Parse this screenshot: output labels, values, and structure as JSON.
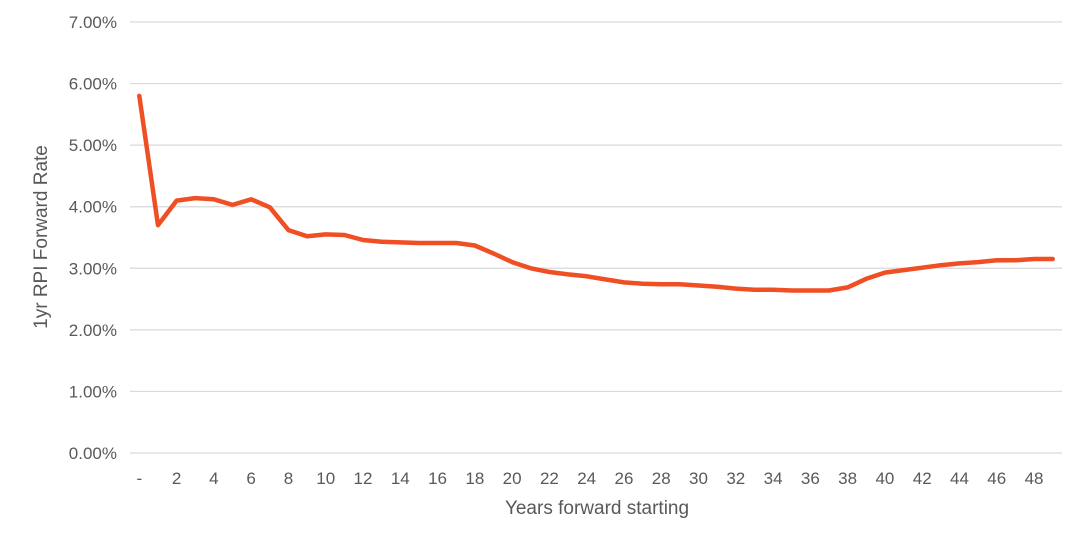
{
  "chart_data": {
    "type": "line",
    "title": "",
    "xlabel": "Years forward starting",
    "ylabel": "1yr RPI Forward Rate",
    "x": [
      0,
      1,
      2,
      3,
      4,
      5,
      6,
      7,
      8,
      9,
      10,
      11,
      12,
      13,
      14,
      15,
      16,
      17,
      18,
      19,
      20,
      21,
      22,
      23,
      24,
      25,
      26,
      27,
      28,
      29,
      30,
      31,
      32,
      33,
      34,
      35,
      36,
      37,
      38,
      39,
      40,
      41,
      42,
      43,
      44,
      45,
      46,
      47,
      48,
      49
    ],
    "x_tick_labels": [
      {
        "x": 0,
        "label": "-"
      },
      {
        "x": 2,
        "label": "2"
      },
      {
        "x": 4,
        "label": "4"
      },
      {
        "x": 6,
        "label": "6"
      },
      {
        "x": 8,
        "label": "8"
      },
      {
        "x": 10,
        "label": "10"
      },
      {
        "x": 12,
        "label": "12"
      },
      {
        "x": 14,
        "label": "14"
      },
      {
        "x": 16,
        "label": "16"
      },
      {
        "x": 18,
        "label": "18"
      },
      {
        "x": 20,
        "label": "20"
      },
      {
        "x": 22,
        "label": "22"
      },
      {
        "x": 24,
        "label": "24"
      },
      {
        "x": 26,
        "label": "26"
      },
      {
        "x": 28,
        "label": "28"
      },
      {
        "x": 30,
        "label": "30"
      },
      {
        "x": 32,
        "label": "32"
      },
      {
        "x": 34,
        "label": "34"
      },
      {
        "x": 36,
        "label": "36"
      },
      {
        "x": 38,
        "label": "38"
      },
      {
        "x": 40,
        "label": "40"
      },
      {
        "x": 42,
        "label": "42"
      },
      {
        "x": 44,
        "label": "44"
      },
      {
        "x": 46,
        "label": "46"
      },
      {
        "x": 48,
        "label": "48"
      }
    ],
    "y_ticks": [
      {
        "value": 0.0,
        "label": "0.00%"
      },
      {
        "value": 1.0,
        "label": "1.00%"
      },
      {
        "value": 2.0,
        "label": "2.00%"
      },
      {
        "value": 3.0,
        "label": "3.00%"
      },
      {
        "value": 4.0,
        "label": "4.00%"
      },
      {
        "value": 5.0,
        "label": "5.00%"
      },
      {
        "value": 6.0,
        "label": "6.00%"
      },
      {
        "value": 7.0,
        "label": "7.00%"
      }
    ],
    "ylim": [
      0,
      7
    ],
    "xlim": [
      0,
      49
    ],
    "grid": true,
    "legend": "none",
    "series": [
      {
        "color": "#f04e23",
        "values": [
          5.8,
          3.7,
          4.1,
          4.14,
          4.12,
          4.03,
          4.12,
          3.99,
          3.62,
          3.52,
          3.55,
          3.54,
          3.46,
          3.43,
          3.42,
          3.41,
          3.41,
          3.41,
          3.37,
          3.24,
          3.1,
          3.0,
          2.94,
          2.9,
          2.87,
          2.82,
          2.77,
          2.75,
          2.74,
          2.74,
          2.72,
          2.7,
          2.67,
          2.65,
          2.65,
          2.64,
          2.64,
          2.64,
          2.69,
          2.83,
          2.93,
          2.97,
          3.01,
          3.05,
          3.08,
          3.1,
          3.13,
          3.13,
          3.15,
          3.15
        ]
      }
    ]
  }
}
